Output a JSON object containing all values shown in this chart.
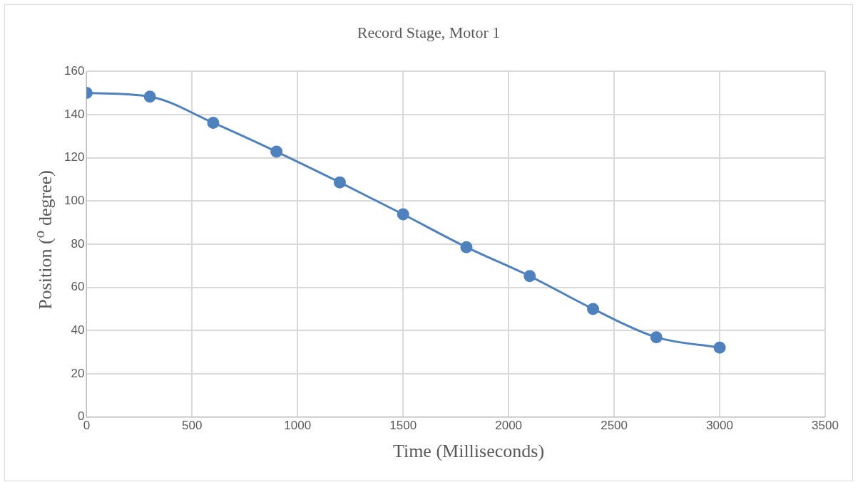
{
  "chart_data": {
    "type": "line",
    "title": "Record Stage, Motor 1",
    "xlabel": "Time  (Milliseconds)",
    "ylabel": "Position ($^{o}$ degree)",
    "x": [
      0,
      300,
      600,
      900,
      1200,
      1500,
      1800,
      2100,
      2400,
      2700,
      3000
    ],
    "series": [
      {
        "color": "#4f81bd",
        "values": [
          150,
          148.3,
          136.2,
          122.8,
          108.6,
          93.8,
          78.6,
          65.2,
          50,
          36.9,
          32.1
        ]
      }
    ],
    "xlim": [
      0,
      3500
    ],
    "xticks": [
      0,
      500,
      1000,
      1500,
      2000,
      2500,
      3000,
      3500
    ],
    "ylim": [
      0,
      160
    ],
    "yticks": [
      0,
      20,
      40,
      60,
      80,
      100,
      120,
      140,
      160
    ],
    "grid": true,
    "legend": false,
    "marker": "circle",
    "line_style": "solid"
  }
}
